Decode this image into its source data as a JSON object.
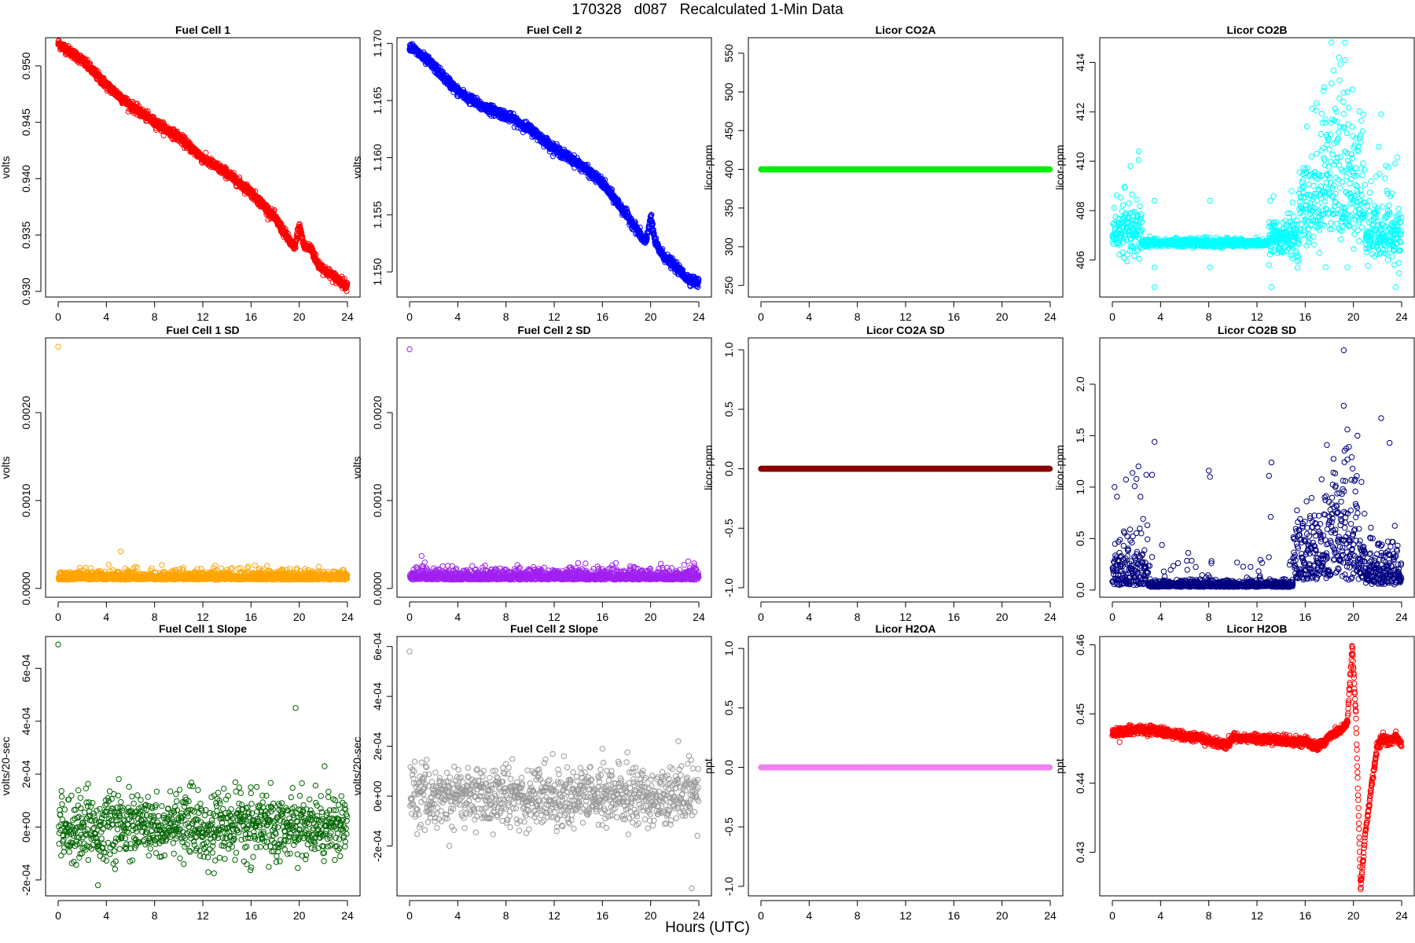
{
  "page_title": "170328   d087   Recalculated 1-Min Data",
  "x_axis_title": "Hours (UTC)",
  "chart_data": [
    {
      "type": "scatter",
      "title": "Fuel Cell 1",
      "ylabel": "volts",
      "color": "#ff0000",
      "xlim": [
        0,
        24
      ],
      "ylim": [
        0.9295,
        0.9525
      ],
      "xticks": [
        "0",
        "4",
        "8",
        "12",
        "16",
        "20",
        "24"
      ],
      "yticks": [
        0.93,
        0.935,
        0.94,
        0.945,
        0.95
      ],
      "ytick_labels": [
        "0.930",
        "0.935",
        "0.940",
        "0.945",
        "0.950"
      ],
      "pattern": "trend",
      "x": [
        0,
        2,
        4,
        6,
        8,
        10,
        12,
        14,
        16,
        18,
        19,
        19.6,
        20,
        20.4,
        21,
        21.5,
        22,
        23,
        24
      ],
      "y": [
        0.952,
        0.9505,
        0.9483,
        0.9465,
        0.945,
        0.9437,
        0.9418,
        0.9405,
        0.9388,
        0.9365,
        0.9348,
        0.9338,
        0.9358,
        0.934,
        0.9338,
        0.9325,
        0.932,
        0.9312,
        0.9305
      ],
      "noise": 0.0002
    },
    {
      "type": "scatter",
      "title": "Fuel Cell 2",
      "ylabel": "volts",
      "color": "#0000ff",
      "xlim": [
        0,
        24
      ],
      "ylim": [
        1.1478,
        1.1705
      ],
      "xticks": [
        "0",
        "4",
        "8",
        "12",
        "16",
        "20",
        "24"
      ],
      "yticks": [
        1.15,
        1.155,
        1.16,
        1.165,
        1.17
      ],
      "ytick_labels": [
        "1.150",
        "1.155",
        "1.160",
        "1.165",
        "1.170"
      ],
      "pattern": "trend",
      "x": [
        0,
        2,
        4,
        6,
        8,
        10,
        12,
        14,
        16,
        18,
        19,
        19.6,
        20,
        20.4,
        21,
        22,
        23,
        24
      ],
      "y": [
        1.1698,
        1.168,
        1.1658,
        1.1645,
        1.1637,
        1.1625,
        1.1608,
        1.1595,
        1.1578,
        1.155,
        1.1535,
        1.1525,
        1.1548,
        1.1525,
        1.1515,
        1.1505,
        1.1495,
        1.149
      ],
      "noise": 0.0002
    },
    {
      "type": "scatter",
      "title": "Licor CO2A",
      "ylabel": "licor-ppm",
      "color": "#00ee00",
      "xlim": [
        0,
        24
      ],
      "ylim": [
        235,
        570
      ],
      "xticks": [
        "0",
        "4",
        "8",
        "12",
        "16",
        "20",
        "24"
      ],
      "yticks": [
        250,
        300,
        350,
        400,
        450,
        500,
        550
      ],
      "ytick_labels": [
        "250",
        "300",
        "350",
        "400",
        "450",
        "500",
        "550"
      ],
      "pattern": "constant",
      "value": 400
    },
    {
      "type": "scatter",
      "title": "Licor CO2B",
      "ylabel": "licor-ppm",
      "color": "#00ffff",
      "xlim": [
        0,
        24
      ],
      "ylim": [
        404.5,
        415
      ],
      "xticks": [
        "0",
        "4",
        "8",
        "12",
        "16",
        "20",
        "24"
      ],
      "yticks": [
        406,
        408,
        410,
        412,
        414
      ],
      "ytick_labels": [
        "406",
        "408",
        "410",
        "412",
        "414"
      ],
      "pattern": "co2b"
    },
    {
      "type": "scatter",
      "title": "Fuel Cell 1 SD",
      "ylabel": "volts",
      "color": "#ffa500",
      "xlim": [
        0,
        24
      ],
      "ylim": [
        -0.0001,
        0.00285
      ],
      "xticks": [
        "0",
        "4",
        "8",
        "12",
        "16",
        "20",
        "24"
      ],
      "yticks": [
        0.0,
        0.001,
        0.002
      ],
      "ytick_labels": [
        "0.0000",
        "0.0010",
        "0.0020"
      ],
      "pattern": "sd",
      "base": 0.0001,
      "spread": 4e-05,
      "first": 0.00275,
      "outliers": [
        [
          5.2,
          0.00042
        ],
        [
          4.2,
          0.00027
        ],
        [
          19.8,
          0.00023
        ]
      ]
    },
    {
      "type": "scatter",
      "title": "Fuel Cell 2 SD",
      "ylabel": "volts",
      "color": "#a020f0",
      "xlim": [
        0,
        24
      ],
      "ylim": [
        -0.0001,
        0.00285
      ],
      "xticks": [
        "0",
        "4",
        "8",
        "12",
        "16",
        "20",
        "24"
      ],
      "yticks": [
        0.0,
        0.001,
        0.002
      ],
      "ytick_labels": [
        "0.0000",
        "0.0010",
        "0.0020"
      ],
      "pattern": "sd",
      "base": 0.0001,
      "spread": 5e-05,
      "first": 0.00272,
      "outliers": [
        [
          1,
          0.00037
        ],
        [
          15.6,
          0.00025
        ]
      ]
    },
    {
      "type": "scatter",
      "title": "Licor CO2A SD",
      "ylabel": "licor-ppm",
      "color": "#8b0000",
      "xlim": [
        0,
        24
      ],
      "ylim": [
        -1.08,
        1.1
      ],
      "xticks": [
        "0",
        "4",
        "8",
        "12",
        "16",
        "20",
        "24"
      ],
      "yticks": [
        -1.0,
        -0.5,
        0.0,
        0.5,
        1.0
      ],
      "ytick_labels": [
        "-1.0",
        "-0.5",
        "0.0",
        "0.5",
        "1.0"
      ],
      "pattern": "constant",
      "value": 0
    },
    {
      "type": "scatter",
      "title": "Licor CO2B SD",
      "ylabel": "licor-ppm",
      "color": "#000080",
      "xlim": [
        0,
        24
      ],
      "ylim": [
        -0.07,
        2.45
      ],
      "xticks": [
        "0",
        "4",
        "8",
        "12",
        "16",
        "20",
        "24"
      ],
      "yticks": [
        0.0,
        0.5,
        1.0,
        1.5,
        2.0
      ],
      "ytick_labels": [
        "0.0",
        "0.5",
        "1.0",
        "1.5",
        "2.0"
      ],
      "pattern": "co2bsd",
      "outliers": [
        [
          19.2,
          2.33
        ],
        [
          19.2,
          1.79
        ],
        [
          22.3,
          1.67
        ],
        [
          3.5,
          1.44
        ],
        [
          23,
          1.43
        ],
        [
          17.8,
          1.41
        ],
        [
          19.5,
          1.56
        ],
        [
          8,
          1.16
        ],
        [
          13.2,
          1.24
        ],
        [
          2,
          1.08
        ],
        [
          3.3,
          1.12
        ],
        [
          13,
          1.11
        ],
        [
          8.1,
          1.1
        ]
      ]
    },
    {
      "type": "scatter",
      "title": "Fuel Cell 1 Slope",
      "ylabel": "volts/20-sec",
      "color": "#006400",
      "xlim": [
        0,
        24
      ],
      "ylim": [
        -0.00026,
        0.00072
      ],
      "xticks": [
        "0",
        "4",
        "8",
        "12",
        "16",
        "20",
        "24"
      ],
      "yticks": [
        -0.0002,
        0,
        0.0002,
        0.0004,
        0.0006
      ],
      "ytick_labels": [
        "-2e-04",
        "0e+00",
        "2e-04",
        "4e-04",
        "6e-04"
      ],
      "pattern": "slope",
      "sigma": 6e-05,
      "first": 0.00069,
      "outliers": [
        [
          19.7,
          0.00045
        ],
        [
          22.1,
          0.00023
        ],
        [
          3.3,
          -0.00022
        ]
      ]
    },
    {
      "type": "scatter",
      "title": "Fuel Cell 2 Slope",
      "ylabel": "volts/20-sec",
      "color": "#999999",
      "xlim": [
        0,
        24
      ],
      "ylim": [
        -0.0004,
        0.00064
      ],
      "xticks": [
        "0",
        "4",
        "8",
        "12",
        "16",
        "20",
        "24"
      ],
      "yticks": [
        -0.0002,
        0,
        0.0002,
        0.0004,
        0.0006
      ],
      "ytick_labels": [
        "-2e-04",
        "0e+00",
        "2e-04",
        "4e-04",
        "6e-04"
      ],
      "pattern": "slope",
      "sigma": 6e-05,
      "first": 0.00058,
      "outliers": [
        [
          23.4,
          -0.00037
        ],
        [
          22.3,
          0.00022
        ],
        [
          3.3,
          -0.0002
        ],
        [
          16,
          0.00019
        ]
      ]
    },
    {
      "type": "scatter",
      "title": "Licor H2OA",
      "ylabel": "ppt",
      "color": "#ee82ee",
      "xlim": [
        0,
        24
      ],
      "ylim": [
        -1.08,
        1.1
      ],
      "xticks": [
        "0",
        "4",
        "8",
        "12",
        "16",
        "20",
        "24"
      ],
      "yticks": [
        -1.0,
        -0.5,
        0.0,
        0.5,
        1.0
      ],
      "ytick_labels": [
        "-1.0",
        "-0.5",
        "0.0",
        "0.5",
        "1.0"
      ],
      "pattern": "constant",
      "value": 0
    },
    {
      "type": "scatter",
      "title": "Licor H2OB",
      "ylabel": "ppt",
      "color": "#ff0000",
      "xlim": [
        0,
        24
      ],
      "ylim": [
        0.4237,
        0.4612
      ],
      "xticks": [
        "0",
        "4",
        "8",
        "12",
        "16",
        "20",
        "24"
      ],
      "yticks": [
        0.43,
        0.44,
        0.45,
        0.46
      ],
      "ytick_labels": [
        "0.43",
        "0.44",
        "0.45",
        "0.46"
      ],
      "pattern": "trend",
      "x": [
        0,
        2,
        4,
        6,
        8,
        9.5,
        10,
        12,
        14,
        16,
        17,
        17.5,
        18,
        19,
        19.5,
        19.9,
        20.2,
        20.6,
        21,
        21.5,
        22,
        22.5,
        23,
        23.5,
        24
      ],
      "y": [
        0.4472,
        0.4478,
        0.4475,
        0.4468,
        0.4462,
        0.4455,
        0.4466,
        0.4464,
        0.4462,
        0.446,
        0.4452,
        0.4458,
        0.4468,
        0.4478,
        0.4488,
        0.4598,
        0.45,
        0.4248,
        0.433,
        0.4395,
        0.4455,
        0.4465,
        0.446,
        0.4468,
        0.4455
      ],
      "noise": 0.0003
    }
  ]
}
